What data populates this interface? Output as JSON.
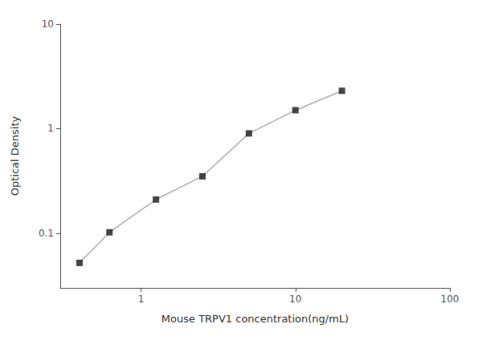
{
  "chart_data": {
    "type": "line",
    "xlabel": "Mouse TRPV1 concentration(ng/mL)",
    "ylabel": "Optical Density",
    "x": [
      0.4,
      0.625,
      1.25,
      2.5,
      5.0,
      10.0,
      20.0
    ],
    "series": [
      {
        "type": "line",
        "color": "#b0b0b0",
        "line_style": "solid",
        "values": [
          0.052,
          0.102,
          0.21,
          0.35,
          0.9,
          1.5,
          2.3
        ]
      },
      {
        "type": "scatter",
        "color": "#1a1a1a",
        "marker": "square",
        "values": [
          0.052,
          0.102,
          0.21,
          0.35,
          0.9,
          1.5,
          2.3
        ]
      }
    ],
    "xlim": [
      0.3,
      100
    ],
    "ylim": [
      0.03,
      10
    ],
    "xticks": [
      1,
      10,
      100
    ],
    "yticks": [
      0.1,
      1,
      10
    ],
    "log": true,
    "grid": false
  }
}
